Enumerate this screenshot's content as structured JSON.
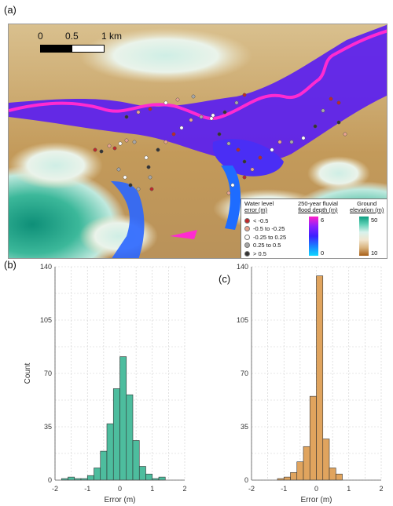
{
  "panel_labels": {
    "a": "(a)",
    "b": "(b)",
    "c": "(c)"
  },
  "map": {
    "scale": {
      "zero": "0",
      "mid": "0.5",
      "end": "1 km"
    },
    "legend": {
      "water_level_title": [
        "Water level",
        "error (m)"
      ],
      "depth_title": [
        "250-year fluvial",
        "flood depth (m)"
      ],
      "elev_title": [
        "Ground",
        "elevation (m)"
      ],
      "water_level_classes": [
        {
          "label": "< -0.5",
          "color": "#c0282a"
        },
        {
          "label": "-0.5 to -0.25",
          "color": "#e8a38f"
        },
        {
          "label": "-0.25 to 0.25",
          "color": "#ffffff"
        },
        {
          "label": "0.25 to 0.5",
          "color": "#a8a8a8"
        },
        {
          "label": "> 0.5",
          "color": "#333333"
        }
      ],
      "depth_max": "6",
      "depth_min": "0",
      "elev_max": "50",
      "elev_min": "10"
    },
    "colors": {
      "flood": "#5a1ef0",
      "river": "#ff2bd0",
      "low_ground": "#c8a46a",
      "high_ground": "#139a83"
    }
  },
  "chart_data": [
    {
      "type": "bar",
      "title": "",
      "xlabel": "Error (m)",
      "ylabel": "Count",
      "bin_edges": [
        -2.0,
        -1.8,
        -1.6,
        -1.4,
        -1.2,
        -1.0,
        -0.8,
        -0.6,
        -0.4,
        -0.2,
        0.0,
        0.2,
        0.4,
        0.6,
        0.8,
        1.0,
        1.2,
        1.4,
        1.6,
        1.8,
        2.0
      ],
      "values": [
        0,
        1,
        2,
        1,
        1,
        3,
        8,
        19,
        37,
        60,
        81,
        56,
        26,
        9,
        4,
        1,
        2,
        0,
        0,
        0
      ],
      "xlim": [
        -2,
        2
      ],
      "ylim": [
        0,
        140
      ],
      "xticks": [
        "-2",
        "-1",
        "0",
        "1",
        "2"
      ],
      "yticks": [
        "0",
        "35",
        "70",
        "105",
        "140"
      ],
      "grid": true,
      "color": "#4dbd9e"
    },
    {
      "type": "bar",
      "title": "",
      "xlabel": "Error (m)",
      "ylabel": "",
      "bin_edges": [
        -2.0,
        -1.8,
        -1.6,
        -1.4,
        -1.2,
        -1.0,
        -0.8,
        -0.6,
        -0.4,
        -0.2,
        0.0,
        0.2,
        0.4,
        0.6,
        0.8,
        1.0,
        1.2,
        1.4,
        1.6,
        1.8,
        2.0
      ],
      "values": [
        0,
        0,
        0,
        0,
        1,
        2,
        5,
        12,
        22,
        55,
        134,
        27,
        8,
        4,
        0,
        0,
        0,
        0,
        0,
        0
      ],
      "xlim": [
        -2,
        2
      ],
      "ylim": [
        0,
        140
      ],
      "xticks": [
        "-2",
        "-1",
        "0",
        "1",
        "2"
      ],
      "yticks": [
        "0",
        "35",
        "70",
        "105",
        "140"
      ],
      "grid": true,
      "color": "#e0a45e"
    }
  ]
}
